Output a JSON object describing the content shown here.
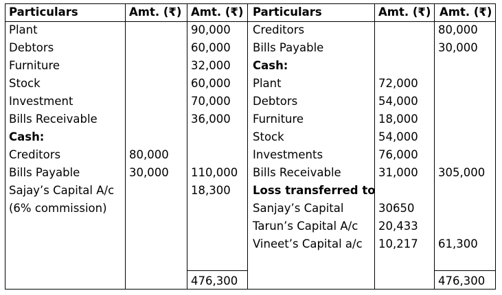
{
  "headers": {
    "particulars_left": "Particulars",
    "amt_left_1": "Amt. (₹)",
    "amt_left_2": "Amt. (₹)",
    "particulars_right": "Particulars",
    "amt_right_1": "Amt. (₹)",
    "amt_right_2": "Amt. (₹)"
  },
  "debit": {
    "rows": [
      {
        "particular": "Plant",
        "inner": "",
        "outer": "90,000"
      },
      {
        "particular": "Debtors",
        "inner": "",
        "outer": "60,000"
      },
      {
        "particular": "Furniture",
        "inner": "",
        "outer": "32,000"
      },
      {
        "particular": "Stock",
        "inner": "",
        "outer": "60,000"
      },
      {
        "particular": "Investment",
        "inner": "",
        "outer": "70,000"
      },
      {
        "particular": "Bills Receivable",
        "inner": "",
        "outer": "36,000"
      },
      {
        "particular": "Cash:",
        "inner": "",
        "outer": ""
      },
      {
        "particular": "Creditors",
        "inner": "80,000",
        "outer": ""
      },
      {
        "particular": "Bills Payable",
        "inner": "30,000",
        "outer": "110,000"
      },
      {
        "particular": "Sajay’s Capital A/c",
        "inner": "",
        "outer": "18,300"
      },
      {
        "particular": "(6% commission)",
        "inner": "",
        "outer": ""
      }
    ],
    "total": "476,300"
  },
  "credit": {
    "rows": [
      {
        "particular": "Creditors",
        "inner": "",
        "outer": "80,000"
      },
      {
        "particular": "Bills Payable",
        "inner": "",
        "outer": "30,000"
      },
      {
        "particular": "Cash:",
        "inner": "",
        "outer": ""
      },
      {
        "particular": "Plant",
        "inner": "72,000",
        "outer": ""
      },
      {
        "particular": "Debtors",
        "inner": "54,000",
        "outer": ""
      },
      {
        "particular": "Furniture",
        "inner": "18,000",
        "outer": ""
      },
      {
        "particular": "Stock",
        "inner": "54,000",
        "outer": ""
      },
      {
        "particular": "Investments",
        "inner": "76,000",
        "outer": ""
      },
      {
        "particular": "Bills Receivable",
        "inner": "31,000",
        "outer": "305,000"
      },
      {
        "particular": "Loss transferred  to",
        "inner": "",
        "outer": ""
      },
      {
        "particular": "Sanjay’s Capital",
        "inner": "30650",
        "outer": ""
      },
      {
        "particular": "Tarun’s Capital A/c",
        "inner": "20,433",
        "outer": ""
      },
      {
        "particular": "Vineet’s Capital a/c",
        "inner": "10,217",
        "outer": "61,300"
      }
    ],
    "total": "476,300"
  }
}
